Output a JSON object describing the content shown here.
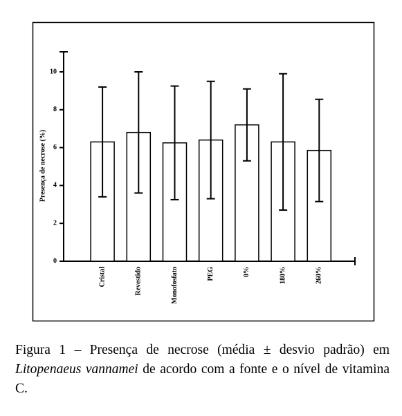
{
  "chart_data": {
    "type": "bar",
    "ylabel": "Presença de necrose (%)",
    "categories": [
      "Cristal",
      "Revestido",
      "Monofosfato",
      "PEG",
      "0%",
      "180%",
      "260%"
    ],
    "values": [
      6.3,
      6.8,
      6.25,
      6.4,
      7.2,
      6.3,
      5.85
    ],
    "errors": [
      2.9,
      3.2,
      3.0,
      3.1,
      1.9,
      3.6,
      2.7
    ],
    "color": "#ffffff",
    "ylim": [
      0,
      11
    ],
    "yticks": [
      0,
      2,
      4,
      6,
      8,
      10
    ]
  },
  "caption": [
    "Figura 1 – Presença de necrose (média ± desvio padrão) em ",
    "Litopenaeus vannamei",
    " de acordo com a fonte e o nível de vitamina C."
  ]
}
